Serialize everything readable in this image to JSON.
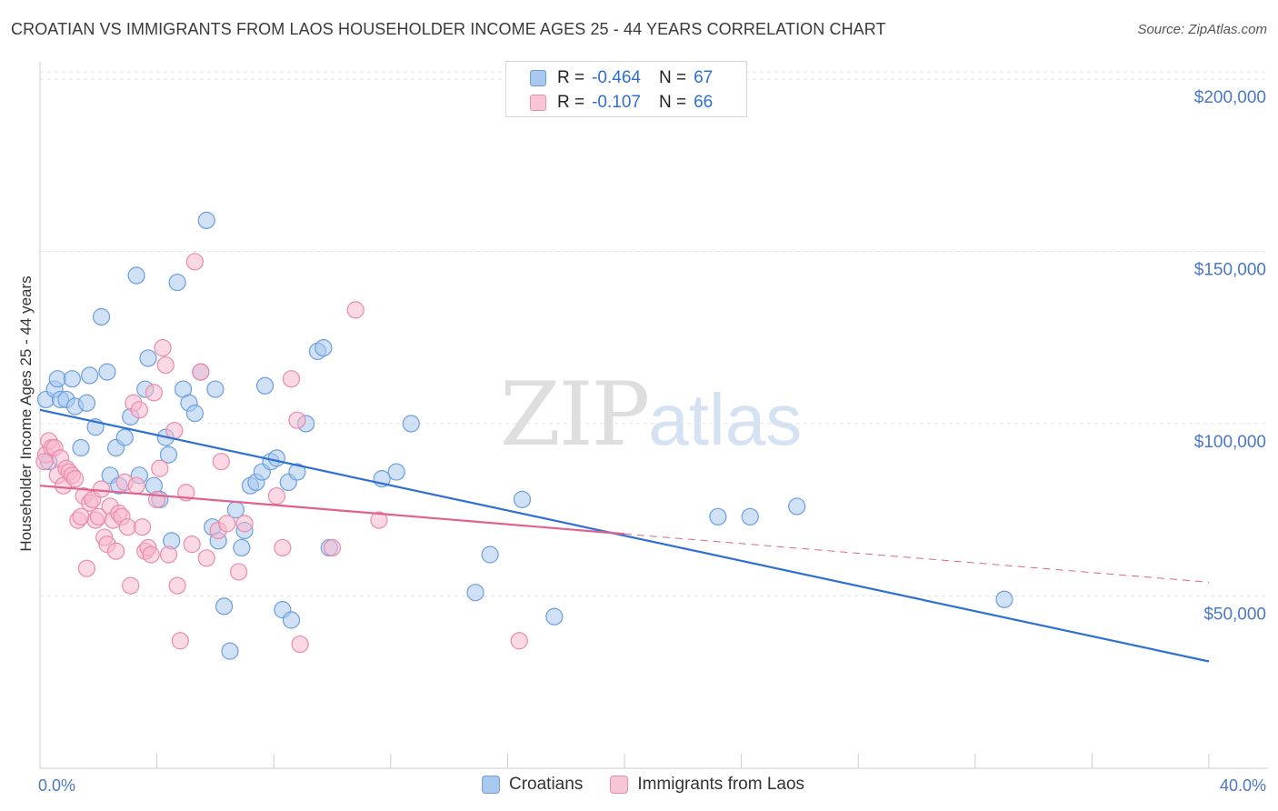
{
  "title": "CROATIAN VS IMMIGRANTS FROM LAOS HOUSEHOLDER INCOME AGES 25 - 44 YEARS CORRELATION CHART",
  "source": "Source: ZipAtlas.com",
  "watermark": {
    "zip": "ZIP",
    "atlas": "atlas"
  },
  "legend": {
    "rows": [
      {
        "r_label": "R =",
        "r_value": "-0.464",
        "n_label": "N =",
        "n_value": "67"
      },
      {
        "r_label": "R =",
        "r_value": "-0.107",
        "n_label": "N =",
        "n_value": "66"
      }
    ]
  },
  "bottom_legend": {
    "croatians": "Croatians",
    "laos": "Immigrants from Laos"
  },
  "colors": {
    "croatians_fill": "#a9c8ef",
    "croatians_stroke": "#6a9edf",
    "croatians_line": "#2d6fd3",
    "laos_fill": "#f6b8cd",
    "laos_stroke": "#eb8aaa",
    "laos_line": "#e0608e",
    "grid": "#e3e3e3",
    "axis_text": "#4a78c8"
  },
  "chart_data": {
    "type": "scatter",
    "title": "CROATIAN VS IMMIGRANTS FROM LAOS HOUSEHOLDER INCOME AGES 25 - 44 YEARS CORRELATION CHART",
    "xlabel": "",
    "ylabel": "Householder Income Ages 25 - 44 years",
    "xlim": [
      0,
      40
    ],
    "ylim": [
      0,
      205000
    ],
    "x_tick_labels": [
      "0.0%",
      "40.0%"
    ],
    "y_ticks": [
      {
        "value": 50000,
        "label": "$50,000"
      },
      {
        "value": 100000,
        "label": "$100,000"
      },
      {
        "value": 150000,
        "label": "$150,000"
      },
      {
        "value": 200000,
        "label": "$200,000"
      }
    ],
    "grid": true,
    "legend_position": "top-center",
    "series": [
      {
        "name": "Croatians",
        "r": -0.464,
        "n": 67,
        "trend": {
          "x": [
            0,
            40
          ],
          "y": [
            104000,
            31000
          ]
        },
        "points": [
          [
            0.2,
            107000
          ],
          [
            0.5,
            110000
          ],
          [
            0.6,
            113000
          ],
          [
            0.7,
            107000
          ],
          [
            0.9,
            107000
          ],
          [
            1.1,
            113000
          ],
          [
            1.2,
            105000
          ],
          [
            1.4,
            93000
          ],
          [
            1.6,
            106000
          ],
          [
            1.7,
            114000
          ],
          [
            1.9,
            99000
          ],
          [
            2.1,
            131000
          ],
          [
            2.3,
            115000
          ],
          [
            2.4,
            85000
          ],
          [
            2.6,
            93000
          ],
          [
            2.7,
            82000
          ],
          [
            2.9,
            96000
          ],
          [
            3.1,
            102000
          ],
          [
            3.3,
            143000
          ],
          [
            3.4,
            85000
          ],
          [
            3.6,
            110000
          ],
          [
            3.7,
            119000
          ],
          [
            3.9,
            82000
          ],
          [
            4.1,
            78000
          ],
          [
            4.3,
            96000
          ],
          [
            4.4,
            91000
          ],
          [
            4.5,
            66000
          ],
          [
            4.7,
            141000
          ],
          [
            4.9,
            110000
          ],
          [
            5.1,
            106000
          ],
          [
            5.3,
            103000
          ],
          [
            5.5,
            115000
          ],
          [
            5.7,
            159000
          ],
          [
            5.9,
            70000
          ],
          [
            6.0,
            110000
          ],
          [
            6.1,
            66000
          ],
          [
            6.3,
            47000
          ],
          [
            6.5,
            34000
          ],
          [
            6.7,
            75000
          ],
          [
            6.9,
            64000
          ],
          [
            7.0,
            69000
          ],
          [
            7.2,
            82000
          ],
          [
            7.4,
            83000
          ],
          [
            7.6,
            86000
          ],
          [
            7.7,
            111000
          ],
          [
            7.9,
            89000
          ],
          [
            8.1,
            90000
          ],
          [
            8.3,
            46000
          ],
          [
            8.5,
            83000
          ],
          [
            8.6,
            43000
          ],
          [
            8.8,
            86000
          ],
          [
            9.1,
            100000
          ],
          [
            9.5,
            121000
          ],
          [
            9.7,
            122000
          ],
          [
            9.9,
            64000
          ],
          [
            11.7,
            84000
          ],
          [
            12.2,
            86000
          ],
          [
            12.7,
            100000
          ],
          [
            14.9,
            51000
          ],
          [
            15.4,
            62000
          ],
          [
            16.5,
            78000
          ],
          [
            17.6,
            44000
          ],
          [
            23.2,
            73000
          ],
          [
            24.3,
            73000
          ],
          [
            25.9,
            76000
          ],
          [
            33.0,
            49000
          ],
          [
            0.3,
            89000
          ]
        ]
      },
      {
        "name": "Immigrants from Laos",
        "r": -0.107,
        "n": 66,
        "trend": {
          "x": [
            0,
            20
          ],
          "y": [
            82000,
            68000
          ]
        },
        "trend_extended": {
          "x": [
            20,
            40
          ],
          "y": [
            68000,
            54000
          ]
        },
        "points": [
          [
            0.2,
            91000
          ],
          [
            0.3,
            95000
          ],
          [
            0.4,
            93000
          ],
          [
            0.5,
            93000
          ],
          [
            0.6,
            85000
          ],
          [
            0.7,
            90000
          ],
          [
            0.8,
            82000
          ],
          [
            0.9,
            87000
          ],
          [
            1.0,
            86000
          ],
          [
            1.1,
            85000
          ],
          [
            1.2,
            84000
          ],
          [
            1.3,
            72000
          ],
          [
            1.4,
            73000
          ],
          [
            1.5,
            79000
          ],
          [
            1.6,
            58000
          ],
          [
            1.7,
            77000
          ],
          [
            1.8,
            78000
          ],
          [
            1.9,
            72000
          ],
          [
            2.0,
            73000
          ],
          [
            2.1,
            81000
          ],
          [
            2.2,
            67000
          ],
          [
            2.3,
            65000
          ],
          [
            2.4,
            76000
          ],
          [
            2.5,
            72000
          ],
          [
            2.6,
            63000
          ],
          [
            2.7,
            74000
          ],
          [
            2.8,
            73000
          ],
          [
            2.9,
            83000
          ],
          [
            3.0,
            70000
          ],
          [
            3.1,
            53000
          ],
          [
            3.2,
            106000
          ],
          [
            3.3,
            82000
          ],
          [
            3.4,
            104000
          ],
          [
            3.5,
            70000
          ],
          [
            3.6,
            63000
          ],
          [
            3.7,
            64000
          ],
          [
            3.8,
            62000
          ],
          [
            3.9,
            109000
          ],
          [
            4.0,
            78000
          ],
          [
            4.1,
            87000
          ],
          [
            4.2,
            122000
          ],
          [
            4.3,
            117000
          ],
          [
            4.4,
            62000
          ],
          [
            4.6,
            98000
          ],
          [
            4.7,
            53000
          ],
          [
            4.8,
            37000
          ],
          [
            5.0,
            80000
          ],
          [
            5.2,
            65000
          ],
          [
            5.3,
            147000
          ],
          [
            5.5,
            115000
          ],
          [
            5.7,
            61000
          ],
          [
            6.1,
            69000
          ],
          [
            6.2,
            89000
          ],
          [
            6.4,
            71000
          ],
          [
            6.8,
            57000
          ],
          [
            7.0,
            71000
          ],
          [
            8.1,
            79000
          ],
          [
            8.3,
            64000
          ],
          [
            8.6,
            113000
          ],
          [
            8.8,
            101000
          ],
          [
            8.9,
            36000
          ],
          [
            10.0,
            64000
          ],
          [
            10.8,
            133000
          ],
          [
            11.6,
            72000
          ],
          [
            16.4,
            37000
          ],
          [
            0.15,
            89000
          ]
        ]
      }
    ]
  }
}
